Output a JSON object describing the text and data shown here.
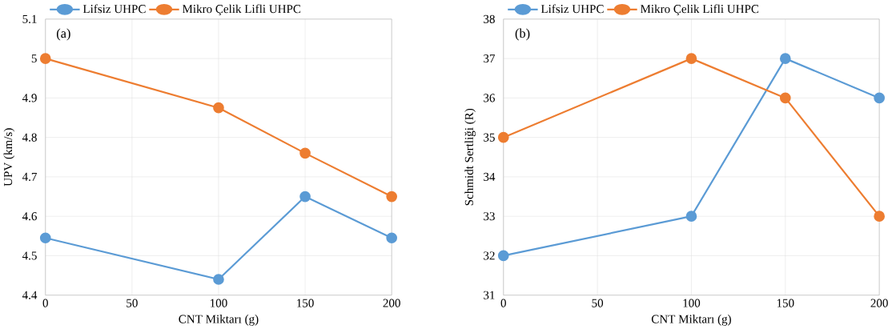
{
  "chart_data": [
    {
      "type": "line",
      "xlabel": "CNT Miktarı (g)",
      "ylabel": "UPV (km/s)",
      "annotations": [
        "(a)"
      ],
      "x": [
        0,
        100,
        150,
        200
      ],
      "xlim": [
        0,
        200
      ],
      "xticks": [
        0,
        50,
        100,
        150,
        200
      ],
      "ylim": [
        4.4,
        5.1
      ],
      "yticks": [
        4.4,
        4.5,
        4.6,
        4.7,
        4.8,
        4.9,
        5,
        5.1
      ],
      "series": [
        {
          "name": "Lifsiz UHPC",
          "color": "#5b9bd5",
          "values": [
            4.545,
            4.44,
            4.65,
            4.545
          ]
        },
        {
          "name": "Mikro Çelik Lifli UHPC",
          "color": "#ed7d31",
          "values": [
            5.0,
            4.875,
            4.76,
            4.65
          ]
        }
      ],
      "grid": true,
      "legend": "top left",
      "marker": "circle",
      "line_style": "solid"
    },
    {
      "type": "line",
      "xlabel": "CNT Miktarı (g)",
      "ylabel": "Schmidt Sertliği (R)",
      "annotations": [
        "(b)"
      ],
      "x": [
        0,
        100,
        150,
        200
      ],
      "xlim": [
        0,
        200
      ],
      "xticks": [
        0,
        50,
        100,
        150,
        200
      ],
      "ylim": [
        31,
        38
      ],
      "yticks": [
        31,
        32,
        33,
        34,
        35,
        36,
        37,
        38
      ],
      "series": [
        {
          "name": "Lifsiz UHPC",
          "color": "#5b9bd5",
          "values": [
            32,
            33,
            37,
            36
          ]
        },
        {
          "name": "Mikro Çelik Lifli UHPC",
          "color": "#ed7d31",
          "values": [
            35,
            37,
            36,
            33
          ]
        }
      ],
      "grid": true,
      "legend": "top left",
      "marker": "circle",
      "line_style": "solid"
    }
  ]
}
